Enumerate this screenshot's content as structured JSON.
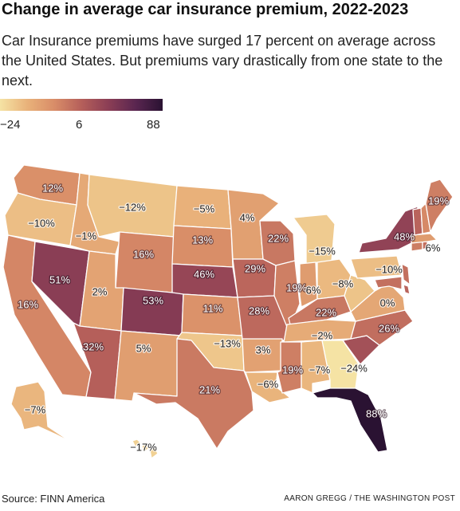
{
  "title": "Change in average car insurance premium, 2022-2023",
  "subtitle": "Car Insurance premiums have surged 17 percent on average across the United States. But premiums vary drastically from one state to the next.",
  "legend": {
    "min_label": "−24",
    "mid_label": "6",
    "max_label": "88",
    "colors": [
      "#f5e3a4",
      "#e9b27a",
      "#d98d68",
      "#b55f5a",
      "#8b3e55",
      "#5a2650",
      "#2a1232"
    ]
  },
  "source": "Source: FINN America",
  "credit": "AARON GREGG / THE WASHINGTON POST",
  "map_data": {
    "value_range": [
      -24,
      88
    ],
    "states": [
      {
        "id": "WA",
        "label": "12%",
        "value": 12
      },
      {
        "id": "OR",
        "label": "−10%",
        "value": -10
      },
      {
        "id": "CA",
        "label": "16%",
        "value": 16
      },
      {
        "id": "NV",
        "label": "51%",
        "value": 51
      },
      {
        "id": "ID",
        "label": "−1%",
        "value": -1
      },
      {
        "id": "MT",
        "label": "−12%",
        "value": -12
      },
      {
        "id": "WY",
        "label": "16%",
        "value": 16
      },
      {
        "id": "UT",
        "label": "2%",
        "value": 2
      },
      {
        "id": "AZ",
        "label": "32%",
        "value": 32
      },
      {
        "id": "CO",
        "label": "53%",
        "value": 53
      },
      {
        "id": "NM",
        "label": "5%",
        "value": 5
      },
      {
        "id": "ND",
        "label": "−5%",
        "value": -5
      },
      {
        "id": "SD",
        "label": "13%",
        "value": 13
      },
      {
        "id": "NE",
        "label": "46%",
        "value": 46
      },
      {
        "id": "KS",
        "label": "11%",
        "value": 11
      },
      {
        "id": "OK",
        "label": "−13%",
        "value": -13
      },
      {
        "id": "TX",
        "label": "21%",
        "value": 21
      },
      {
        "id": "MN",
        "label": "4%",
        "value": 4
      },
      {
        "id": "IA",
        "label": "29%",
        "value": 29
      },
      {
        "id": "MO",
        "label": "28%",
        "value": 28
      },
      {
        "id": "AR",
        "label": "3%",
        "value": 3
      },
      {
        "id": "LA",
        "label": "−6%",
        "value": -6
      },
      {
        "id": "WI",
        "label": "22%",
        "value": 22
      },
      {
        "id": "IL",
        "label": "19%",
        "value": 19
      },
      {
        "id": "MI",
        "label": "−15%",
        "value": -15
      },
      {
        "id": "IN",
        "label": "6%",
        "value": 6
      },
      {
        "id": "OH",
        "label": "−8%",
        "value": -8
      },
      {
        "id": "KY",
        "label": "22%",
        "value": 22
      },
      {
        "id": "TN",
        "label": "−2%",
        "value": -2
      },
      {
        "id": "MS",
        "label": "19%",
        "value": 19
      },
      {
        "id": "AL",
        "label": "−7%",
        "value": -7
      },
      {
        "id": "GA",
        "label": "−24%",
        "value": -24
      },
      {
        "id": "FL",
        "label": "88%",
        "value": 88
      },
      {
        "id": "SC",
        "label": "",
        "value": 40
      },
      {
        "id": "NC",
        "label": "26%",
        "value": 26
      },
      {
        "id": "VA",
        "label": "0%",
        "value": 0
      },
      {
        "id": "WV",
        "label": "",
        "value": -12
      },
      {
        "id": "PA",
        "label": "−10%",
        "value": -10
      },
      {
        "id": "NY",
        "label": "48%",
        "value": 48
      },
      {
        "id": "NJ",
        "label": "",
        "value": 25
      },
      {
        "id": "DE",
        "label": "",
        "value": 30
      },
      {
        "id": "MD",
        "label": "",
        "value": 25
      },
      {
        "id": "CT",
        "label": "",
        "value": 20
      },
      {
        "id": "RI",
        "label": "",
        "value": 25
      },
      {
        "id": "MA",
        "label": "6%",
        "value": 6
      },
      {
        "id": "VT",
        "label": "",
        "value": 30
      },
      {
        "id": "NH",
        "label": "",
        "value": 15
      },
      {
        "id": "ME",
        "label": "19%",
        "value": 19
      },
      {
        "id": "AK",
        "label": "−7%",
        "value": -7
      },
      {
        "id": "HI",
        "label": "−17%",
        "value": -17
      }
    ]
  }
}
